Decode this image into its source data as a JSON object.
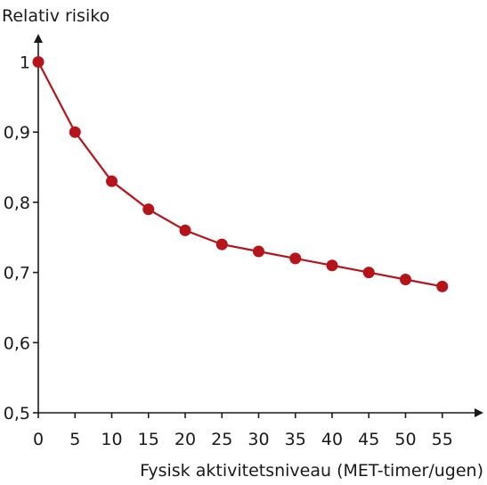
{
  "chart_data": {
    "type": "line",
    "title": "",
    "xlabel": "Fysisk aktivitetsniveau (MET-timer/ugen)",
    "ylabel": "Relativ risiko",
    "x": [
      0,
      5,
      10,
      15,
      20,
      25,
      30,
      35,
      40,
      45,
      50,
      55
    ],
    "series": [
      {
        "values": [
          1.0,
          0.9,
          0.83,
          0.79,
          0.76,
          0.74,
          0.73,
          0.72,
          0.71,
          0.7,
          0.69,
          0.68
        ]
      }
    ],
    "xlim": [
      0,
      60
    ],
    "ylim": [
      0.5,
      1.05
    ],
    "xticks": [
      0,
      5,
      10,
      15,
      20,
      25,
      30,
      35,
      40,
      45,
      50,
      55
    ],
    "xtick_labels": [
      "0",
      "5",
      "10",
      "15",
      "20",
      "25",
      "30",
      "35",
      "40",
      "45",
      "50",
      "55"
    ],
    "yticks": [
      0.5,
      0.6,
      0.7,
      0.8,
      0.9,
      1.0
    ],
    "ytick_labels": [
      "0,5",
      "0,6",
      "0,7",
      "0,8",
      "0,9",
      "1"
    ],
    "grid": false,
    "legend": "none",
    "colors": {
      "series": "#b5141b",
      "axis": "#1a1a1a"
    }
  }
}
